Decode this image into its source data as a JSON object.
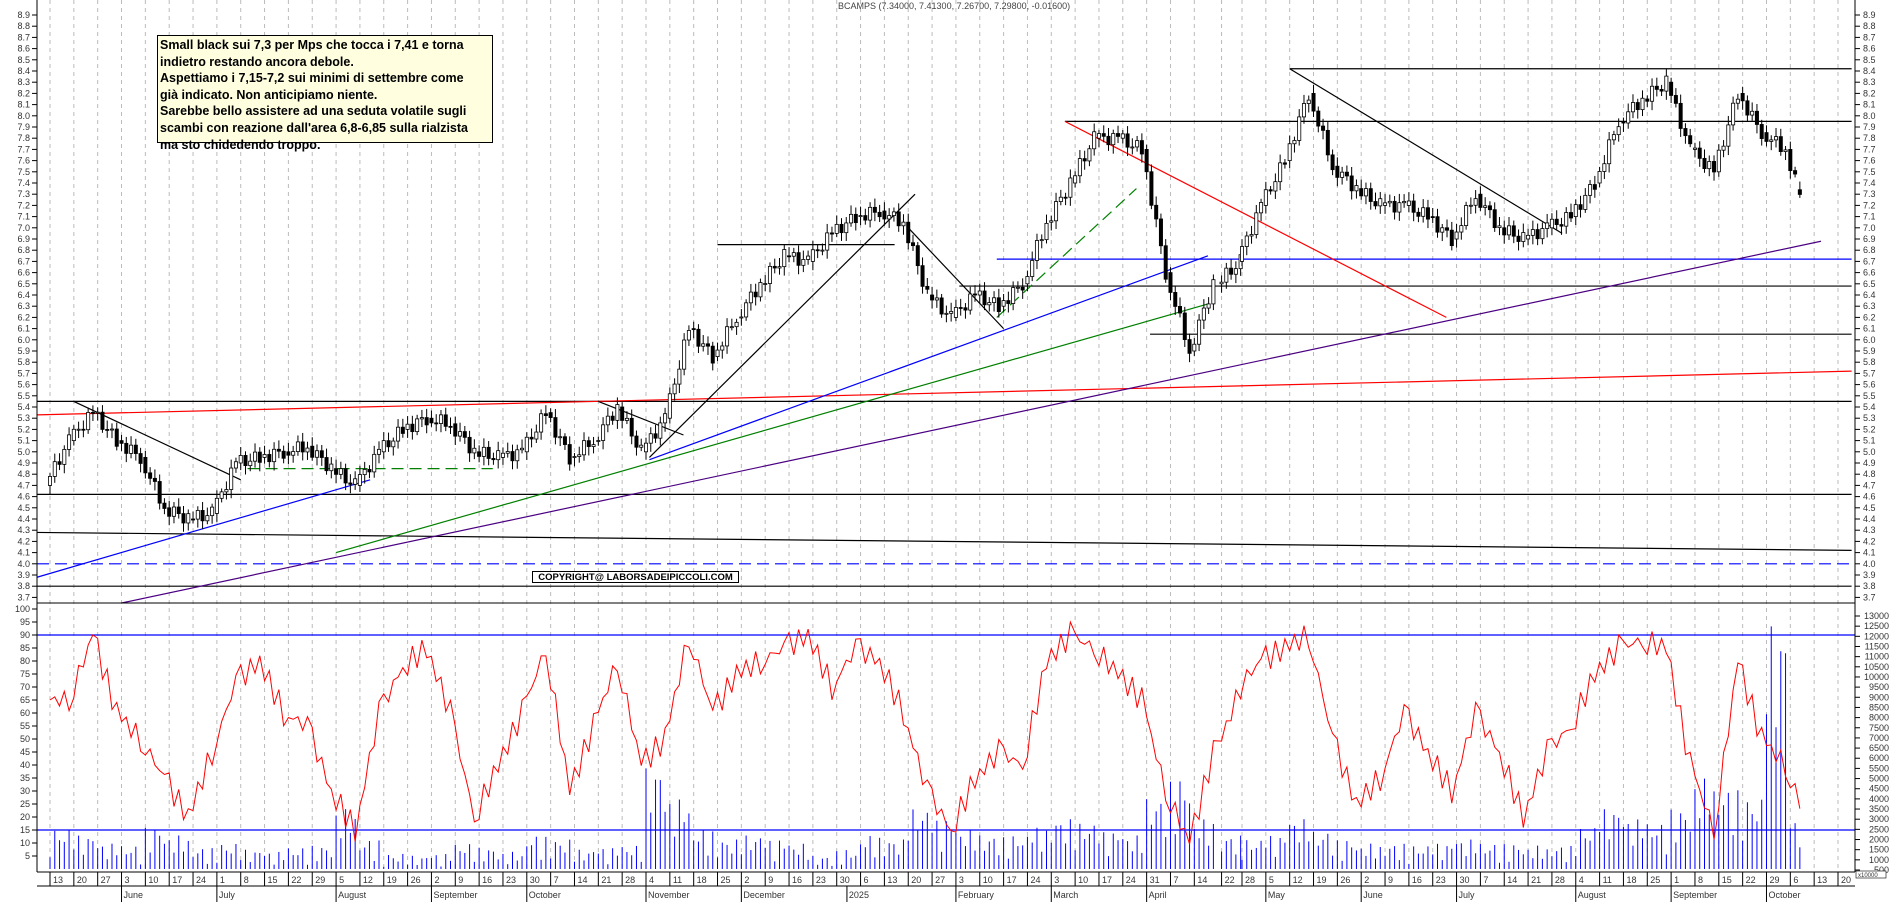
{
  "chart_data": {
    "type": "candlestick",
    "title": "BCAMPS (7.34000, 7.41300, 7.26700, 7.29800, -0.01600)",
    "last_candle": {
      "open": 7.34,
      "high": 7.413,
      "low": 7.267,
      "close": 7.298,
      "change": -0.016
    },
    "price_axis": {
      "ylim": [
        3.6,
        9.0
      ],
      "ticks": [
        "8.9",
        "8.8",
        "8.7",
        "8.6",
        "8.5",
        "8.4",
        "8.3",
        "8.2",
        "8.1",
        "8.0",
        "7.9",
        "7.8",
        "7.7",
        "7.6",
        "7.5",
        "7.4",
        "7.3",
        "7.2",
        "7.1",
        "7.0",
        "6.9",
        "6.8",
        "6.7",
        "6.6",
        "6.5",
        "6.4",
        "6.3",
        "6.2",
        "6.1",
        "6.0",
        "5.9",
        "5.8",
        "5.7",
        "5.6",
        "5.5",
        "5.4",
        "5.3",
        "5.2",
        "5.1",
        "5.0",
        "4.9",
        "4.8",
        "4.7",
        "4.6",
        "4.5",
        "4.4",
        "4.3",
        "4.2",
        "4.1",
        "4.0",
        "3.9",
        "3.8",
        "3.7"
      ]
    },
    "oscillator_axis": {
      "ylim": [
        0,
        100
      ],
      "ticks": [
        "100",
        "95",
        "90",
        "85",
        "80",
        "75",
        "70",
        "65",
        "60",
        "55",
        "50",
        "45",
        "40",
        "35",
        "30",
        "25",
        "20",
        "15",
        "10",
        "5"
      ],
      "levels": [
        90,
        15
      ]
    },
    "volume_axis": {
      "ylim": [
        0,
        13000
      ],
      "unit": "x10000",
      "ticks": [
        "13000",
        "12500",
        "12000",
        "11500",
        "11000",
        "10500",
        "10000",
        "9500",
        "9000",
        "8500",
        "8000",
        "7500",
        "7000",
        "6500",
        "6000",
        "5500",
        "5000",
        "4500",
        "4000",
        "3500",
        "3000",
        "2500",
        "2000",
        "1500",
        "1000",
        "500"
      ]
    },
    "weeks": [
      "2024-05-13",
      "2024-05-20",
      "2024-05-27",
      "2024-06-03",
      "2024-06-10",
      "2024-06-17",
      "2024-06-24",
      "2024-07-01",
      "2024-07-08",
      "2024-07-15",
      "2024-07-22",
      "2024-07-29",
      "2024-08-05",
      "2024-08-12",
      "2024-08-19",
      "2024-08-26",
      "2024-09-02",
      "2024-09-09",
      "2024-09-16",
      "2024-09-23",
      "2024-09-30",
      "2024-10-07",
      "2024-10-14",
      "2024-10-21",
      "2024-10-28",
      "2024-11-04",
      "2024-11-11",
      "2024-11-18",
      "2024-11-25",
      "2024-12-02",
      "2024-12-09",
      "2024-12-16",
      "2024-12-23",
      "2024-12-30",
      "2025-01-06",
      "2025-01-13",
      "2025-01-20",
      "2025-01-27",
      "2025-02-03",
      "2025-02-10",
      "2025-02-17",
      "2025-02-24",
      "2025-03-03",
      "2025-03-10",
      "2025-03-17",
      "2025-03-24",
      "2025-03-31",
      "2025-04-07",
      "2025-04-14",
      "2025-04-22",
      "2025-04-28",
      "2025-05-05",
      "2025-05-12",
      "2025-05-19",
      "2025-05-26",
      "2025-06-02",
      "2025-06-09",
      "2025-06-16",
      "2025-06-23",
      "2025-06-30",
      "2025-07-07",
      "2025-07-14",
      "2025-07-21",
      "2025-07-28",
      "2025-08-04",
      "2025-08-11",
      "2025-08-18",
      "2025-08-25",
      "2025-09-01",
      "2025-09-08",
      "2025-09-15",
      "2025-09-22",
      "2025-09-29",
      "2025-10-06"
    ],
    "start_price": 4.7,
    "weekly_close": [
      5.1,
      5.35,
      5.1,
      4.95,
      4.5,
      4.4,
      4.45,
      4.9,
      4.95,
      5.0,
      5.05,
      4.85,
      4.7,
      5.0,
      5.2,
      5.3,
      5.25,
      5.0,
      4.95,
      5.0,
      5.35,
      4.95,
      5.1,
      5.4,
      5.0,
      5.3,
      6.1,
      5.85,
      6.2,
      6.5,
      6.75,
      6.7,
      6.95,
      7.1,
      7.15,
      7.05,
      6.4,
      6.2,
      6.4,
      6.3,
      6.5,
      7.05,
      7.4,
      7.8,
      7.8,
      7.7,
      6.6,
      5.9,
      6.5,
      6.7,
      7.2,
      7.6,
      8.2,
      7.55,
      7.35,
      7.2,
      7.2,
      7.1,
      6.9,
      7.3,
      7.0,
      6.9,
      7.0,
      7.1,
      7.4,
      7.95,
      8.15,
      8.3,
      7.7,
      7.5,
      8.2,
      7.85,
      7.7,
      7.298
    ],
    "oscillator_weekly": [
      65,
      90,
      60,
      50,
      35,
      20,
      45,
      72,
      80,
      60,
      55,
      30,
      15,
      60,
      78,
      85,
      60,
      20,
      40,
      60,
      85,
      30,
      55,
      80,
      40,
      50,
      90,
      60,
      75,
      80,
      85,
      90,
      70,
      85,
      80,
      60,
      30,
      15,
      35,
      45,
      40,
      80,
      90,
      85,
      75,
      65,
      30,
      10,
      45,
      70,
      80,
      85,
      90,
      50,
      25,
      35,
      60,
      45,
      30,
      60,
      45,
      20,
      45,
      55,
      75,
      85,
      88,
      85,
      40,
      15,
      80,
      50,
      40,
      25
    ],
    "volume_weekly": [
      2500,
      2200,
      1800,
      1700,
      2600,
      2200,
      1600,
      1800,
      1500,
      1400,
      1600,
      1700,
      3500,
      2000,
      1300,
      1200,
      1300,
      1800,
      1600,
      1400,
      2200,
      2000,
      1500,
      1600,
      1700,
      5500,
      4000,
      2500,
      2000,
      2200,
      2000,
      1800,
      1200,
      1500,
      2200,
      2000,
      3500,
      3000,
      2500,
      2200,
      2200,
      2600,
      3000,
      2800,
      2400,
      2200,
      4000,
      5000,
      3000,
      2200,
      2000,
      2200,
      3000,
      2400,
      2000,
      1800,
      1800,
      1700,
      1800,
      2000,
      1800,
      1800,
      1700,
      1700,
      2600,
      3500,
      3000,
      2800,
      3500,
      5000,
      4500,
      4000,
      12500,
      3000
    ],
    "month_labels": [
      {
        "label": "June",
        "date": "2024-06-03"
      },
      {
        "label": "July",
        "date": "2024-07-01"
      },
      {
        "label": "August",
        "date": "2024-08-05"
      },
      {
        "label": "September",
        "date": "2024-09-02"
      },
      {
        "label": "October",
        "date": "2024-09-30"
      },
      {
        "label": "November",
        "date": "2024-11-04"
      },
      {
        "label": "December",
        "date": "2024-12-02"
      },
      {
        "label": "2025",
        "date": "2025-01-02"
      },
      {
        "label": "February",
        "date": "2025-02-03"
      },
      {
        "label": "March",
        "date": "2025-03-03"
      },
      {
        "label": "April",
        "date": "2025-03-31"
      },
      {
        "label": "May",
        "date": "2025-05-05"
      },
      {
        "label": "June",
        "date": "2025-06-02"
      },
      {
        "label": "July",
        "date": "2025-06-30"
      },
      {
        "label": "August",
        "date": "2025-08-04"
      },
      {
        "label": "September",
        "date": "2025-09-01"
      },
      {
        "label": "October",
        "date": "2025-09-29"
      }
    ],
    "day_labels": [
      "13",
      "20",
      "27",
      "3",
      "10",
      "17",
      "24",
      "1",
      "8",
      "15",
      "22",
      "29",
      "5",
      "12",
      "19",
      "26",
      "2",
      "9",
      "16",
      "23",
      "30",
      "7",
      "14",
      "21",
      "28",
      "4",
      "11",
      "18",
      "25",
      "2",
      "9",
      "16",
      "23",
      "30",
      "6",
      "13",
      "20",
      "27",
      "3",
      "10",
      "17",
      "24",
      "3",
      "10",
      "17",
      "24",
      "31",
      "7",
      "14",
      "22",
      "28",
      "5",
      "12",
      "19",
      "26",
      "2",
      "9",
      "16",
      "23",
      "30",
      "7",
      "14",
      "21",
      "28",
      "4",
      "11",
      "18",
      "25",
      "1",
      "8",
      "15",
      "22",
      "29",
      "6",
      "13",
      "20"
    ],
    "trendlines": [
      {
        "color": "#000000",
        "from": [
          "2025-05-12",
          8.42
        ],
        "to": [
          "2025-10-24",
          8.42
        ]
      },
      {
        "color": "#000000",
        "from": [
          "2025-03-07",
          7.95
        ],
        "to": [
          "2025-10-24",
          7.95
        ]
      },
      {
        "color": "#000000",
        "from": [
          "2024-11-25",
          6.85
        ],
        "to": [
          "2025-01-16",
          6.85
        ]
      },
      {
        "color": "#000000",
        "from": [
          "2025-02-04",
          6.48
        ],
        "to": [
          "2025-10-24",
          6.48
        ]
      },
      {
        "color": "#000000",
        "from": [
          "2025-04-01",
          6.05
        ],
        "to": [
          "2025-10-24",
          6.05
        ]
      },
      {
        "color": "#000000",
        "from": [
          "2024-05-09",
          5.45
        ],
        "to": [
          "2025-10-24",
          5.45
        ]
      },
      {
        "color": "#000000",
        "from": [
          "2024-05-09",
          4.62
        ],
        "to": [
          "2025-10-24",
          4.62
        ]
      },
      {
        "color": "#000000",
        "from": [
          "2024-05-09",
          4.28
        ],
        "to": [
          "2025-10-24",
          4.12
        ]
      },
      {
        "color": "#000000",
        "from": [
          "2024-05-09",
          3.8
        ],
        "to": [
          "2025-10-24",
          3.8
        ]
      },
      {
        "color": "#0000ff",
        "dashed": true,
        "from": [
          "2024-05-09",
          4.0
        ],
        "to": [
          "2025-10-24",
          4.0
        ]
      },
      {
        "color": "#0000ff",
        "from": [
          "2025-02-15",
          6.72
        ],
        "to": [
          "2025-10-24",
          6.72
        ]
      },
      {
        "color": "#ff0000",
        "from": [
          "2024-05-09",
          5.33
        ],
        "to": [
          "2025-10-24",
          5.72
        ]
      },
      {
        "color": "#4b0082",
        "from": [
          "2024-06-03",
          3.65
        ],
        "to": [
          "2025-10-15",
          6.88
        ]
      },
      {
        "color": "#008000",
        "from": [
          "2024-08-05",
          4.1
        ],
        "to": [
          "2025-04-18",
          6.32
        ]
      },
      {
        "color": "#0000ff",
        "from": [
          "2024-05-09",
          3.88
        ],
        "to": [
          "2024-08-15",
          4.75
        ]
      },
      {
        "color": "#0000ff",
        "from": [
          "2024-11-05",
          4.93
        ],
        "to": [
          "2025-04-18",
          6.75
        ]
      },
      {
        "color": "#000000",
        "from": [
          "2024-05-20",
          5.45
        ],
        "to": [
          "2024-07-08",
          4.75
        ]
      },
      {
        "color": "#000000",
        "from": [
          "2024-11-05",
          4.95
        ],
        "to": [
          "2025-01-22",
          7.3
        ]
      },
      {
        "color": "#000000",
        "from": [
          "2024-10-21",
          5.45
        ],
        "to": [
          "2024-11-15",
          5.15
        ]
      },
      {
        "color": "#000000",
        "from": [
          "2025-01-20",
          7.0
        ],
        "to": [
          "2025-02-17",
          6.1
        ]
      },
      {
        "color": "#008000",
        "dashed": true,
        "from": [
          "2024-07-10",
          4.85
        ],
        "to": [
          "2024-09-20",
          4.85
        ]
      },
      {
        "color": "#008000",
        "dashed": true,
        "from": [
          "2025-02-15",
          6.2
        ],
        "to": [
          "2025-03-28",
          7.35
        ]
      },
      {
        "color": "#ff0000",
        "from": [
          "2025-03-07",
          7.95
        ],
        "to": [
          "2025-06-27",
          6.2
        ]
      },
      {
        "color": "#000000",
        "from": [
          "2025-05-12",
          8.42
        ],
        "to": [
          "2025-07-31",
          6.95
        ]
      }
    ],
    "colors": {
      "oscillator": "#ff0000",
      "volume": "#0000ff",
      "levels": "#0000ff",
      "up_candle": "#ffffff",
      "down_candle": "#000000"
    },
    "grid": "vertical dashed weekly"
  },
  "annotation": {
    "lines": [
      "Small black sui 7,3 per Mps che tocca i 7,41 e torna",
      "indietro restando ancora debole.",
      "Aspettiamo i 7,15-7,2 sui minimi di settembre come",
      "già indicato. Non anticipiamo niente.",
      "Sarebbe bello assistere ad una seduta volatile sugli",
      "scambi con reazione dall'area 6,8-6,85 sulla rialzista",
      "ma sto chidedendo troppo."
    ]
  },
  "copyright": "COPYRIGHT@ LABORSADEIPICCOLI.COM"
}
